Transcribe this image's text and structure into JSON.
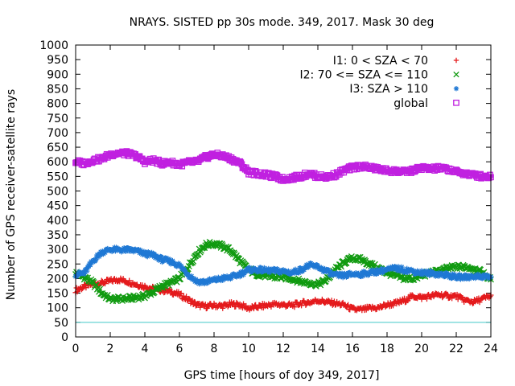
{
  "chart_data": {
    "type": "scatter",
    "title": "NRAYS. SISTED pp 30s mode. 349, 2017. Mask 30 deg",
    "xlabel": "GPS time [hours of doy 349, 2017]",
    "ylabel": "Number of GPS receiver-satellite rays",
    "xlim": [
      0,
      24
    ],
    "ylim": [
      0,
      1000
    ],
    "xticks": [
      0,
      2,
      4,
      6,
      8,
      10,
      12,
      14,
      16,
      18,
      20,
      22,
      24
    ],
    "yticks": [
      0,
      50,
      100,
      150,
      200,
      250,
      300,
      350,
      400,
      450,
      500,
      550,
      600,
      650,
      700,
      750,
      800,
      850,
      900,
      950,
      1000
    ],
    "legend_position": "top-right",
    "series": [
      {
        "name": "I1: 0 < SZA < 70",
        "color": "#e41a1c",
        "marker": "+",
        "x": [
          0,
          0.5,
          1,
          1.5,
          2,
          2.5,
          3,
          3.5,
          4,
          4.5,
          5,
          5.5,
          6,
          6.5,
          7,
          7.5,
          8,
          8.5,
          9,
          9.5,
          10,
          10.5,
          11,
          11.5,
          12,
          12.5,
          13,
          13.5,
          14,
          14.5,
          15,
          15.5,
          16,
          16.5,
          17,
          17.5,
          18,
          18.5,
          19,
          19.5,
          20,
          20.5,
          21,
          21.5,
          22,
          22.5,
          23,
          23.5,
          24
        ],
        "y": [
          160,
          172,
          182,
          185,
          192,
          197,
          190,
          180,
          172,
          165,
          160,
          155,
          145,
          128,
          110,
          105,
          108,
          106,
          112,
          110,
          98,
          103,
          108,
          112,
          110,
          108,
          115,
          118,
          125,
          120,
          115,
          110,
          95,
          93,
          98,
          100,
          110,
          115,
          125,
          140,
          135,
          140,
          145,
          140,
          140,
          125,
          120,
          130,
          140
        ]
      },
      {
        "name": "I2: 70 <= SZA <= 110",
        "color": "#109a10",
        "marker": "x",
        "x": [
          0,
          0.5,
          1,
          1.5,
          2,
          2.5,
          3,
          3.5,
          4,
          4.5,
          5,
          5.5,
          6,
          6.5,
          7,
          7.5,
          8,
          8.5,
          9,
          9.5,
          10,
          10.5,
          11,
          11.5,
          12,
          12.5,
          13,
          13.5,
          14,
          14.5,
          15,
          15.5,
          16,
          16.5,
          17,
          17.5,
          18,
          18.5,
          19,
          19.5,
          20,
          20.5,
          21,
          21.5,
          22,
          22.5,
          23,
          23.5,
          24
        ],
        "y": [
          220,
          205,
          185,
          150,
          130,
          130,
          132,
          135,
          140,
          155,
          175,
          185,
          200,
          240,
          285,
          315,
          320,
          310,
          295,
          260,
          230,
          215,
          210,
          205,
          205,
          200,
          190,
          185,
          180,
          195,
          230,
          255,
          270,
          265,
          250,
          235,
          220,
          210,
          200,
          200,
          210,
          220,
          225,
          235,
          240,
          240,
          235,
          220,
          195
        ]
      },
      {
        "name": "I3: SZA > 110",
        "color": "#1f78d4",
        "marker": "*",
        "x": [
          0,
          0.5,
          1,
          1.5,
          2,
          2.5,
          3,
          3.5,
          4,
          4.5,
          5,
          5.5,
          6,
          6.5,
          7,
          7.5,
          8,
          8.5,
          9,
          9.5,
          10,
          10.5,
          11,
          11.5,
          12,
          12.5,
          13,
          13.5,
          14,
          14.5,
          15,
          15.5,
          16,
          16.5,
          17,
          17.5,
          18,
          18.5,
          19,
          19.5,
          20,
          20.5,
          21,
          21.5,
          22,
          22.5,
          23,
          23.5,
          24
        ],
        "y": [
          215,
          218,
          260,
          290,
          300,
          298,
          298,
          295,
          285,
          280,
          265,
          258,
          245,
          215,
          190,
          188,
          195,
          200,
          205,
          215,
          230,
          230,
          228,
          226,
          225,
          220,
          230,
          245,
          240,
          225,
          210,
          210,
          215,
          215,
          220,
          225,
          230,
          235,
          230,
          225,
          220,
          218,
          215,
          212,
          205,
          205,
          208,
          208,
          205
        ]
      },
      {
        "name": "global",
        "color": "#c020e0",
        "marker": "square",
        "x": [
          0,
          0.5,
          1,
          1.5,
          2,
          2.5,
          3,
          3.5,
          4,
          4.5,
          5,
          5.5,
          6,
          6.5,
          7,
          7.5,
          8,
          8.5,
          9,
          9.5,
          10,
          10.5,
          11,
          11.5,
          12,
          12.5,
          13,
          13.5,
          14,
          14.5,
          15,
          15.5,
          16,
          16.5,
          17,
          17.5,
          18,
          18.5,
          19,
          19.5,
          20,
          20.5,
          21,
          21.5,
          22,
          22.5,
          23,
          23.5,
          24
        ],
        "y": [
          600,
          595,
          605,
          610,
          625,
          630,
          628,
          620,
          600,
          605,
          595,
          598,
          590,
          598,
          600,
          615,
          625,
          620,
          610,
          595,
          565,
          560,
          555,
          550,
          540,
          545,
          550,
          560,
          550,
          548,
          555,
          570,
          580,
          585,
          580,
          575,
          570,
          568,
          565,
          570,
          580,
          575,
          578,
          575,
          565,
          560,
          555,
          550,
          550
        ]
      }
    ],
    "reference_line": {
      "y": 50,
      "color": "#40c8c8"
    }
  }
}
